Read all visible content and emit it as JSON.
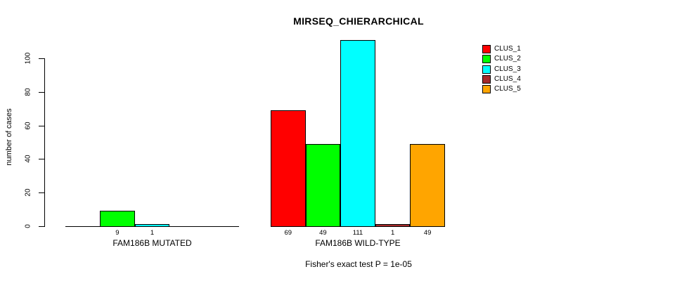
{
  "title": "MIRSEQ_CHIERARCHICAL",
  "chart_data": {
    "type": "bar",
    "title": "MIRSEQ_CHIERARCHICAL",
    "ylabel": "number of cases",
    "xlabel": "",
    "ylim": [
      0,
      111
    ],
    "yticks": [
      0,
      20,
      40,
      60,
      80,
      100
    ],
    "grid": false,
    "legend_position": "top-right",
    "legend": [
      {
        "label": "CLUS_1",
        "color": "#ff0000"
      },
      {
        "label": "CLUS_2",
        "color": "#00ff00"
      },
      {
        "label": "CLUS_3",
        "color": "#00ffff"
      },
      {
        "label": "CLUS_4",
        "color": "#a52a2a"
      },
      {
        "label": "CLUS_5",
        "color": "#ffa500"
      }
    ],
    "groups": [
      {
        "label": "FAM186B MUTATED",
        "values": [
          0,
          9,
          1,
          0,
          0
        ],
        "bar_labels": [
          "",
          "9",
          "1",
          "",
          ""
        ]
      },
      {
        "label": "FAM186B WILD-TYPE",
        "values": [
          69,
          49,
          111,
          1,
          49
        ],
        "bar_labels": [
          "69",
          "49",
          "111",
          "1",
          "49"
        ]
      }
    ],
    "annotation": "Fisher's exact test P = 1e-05"
  }
}
